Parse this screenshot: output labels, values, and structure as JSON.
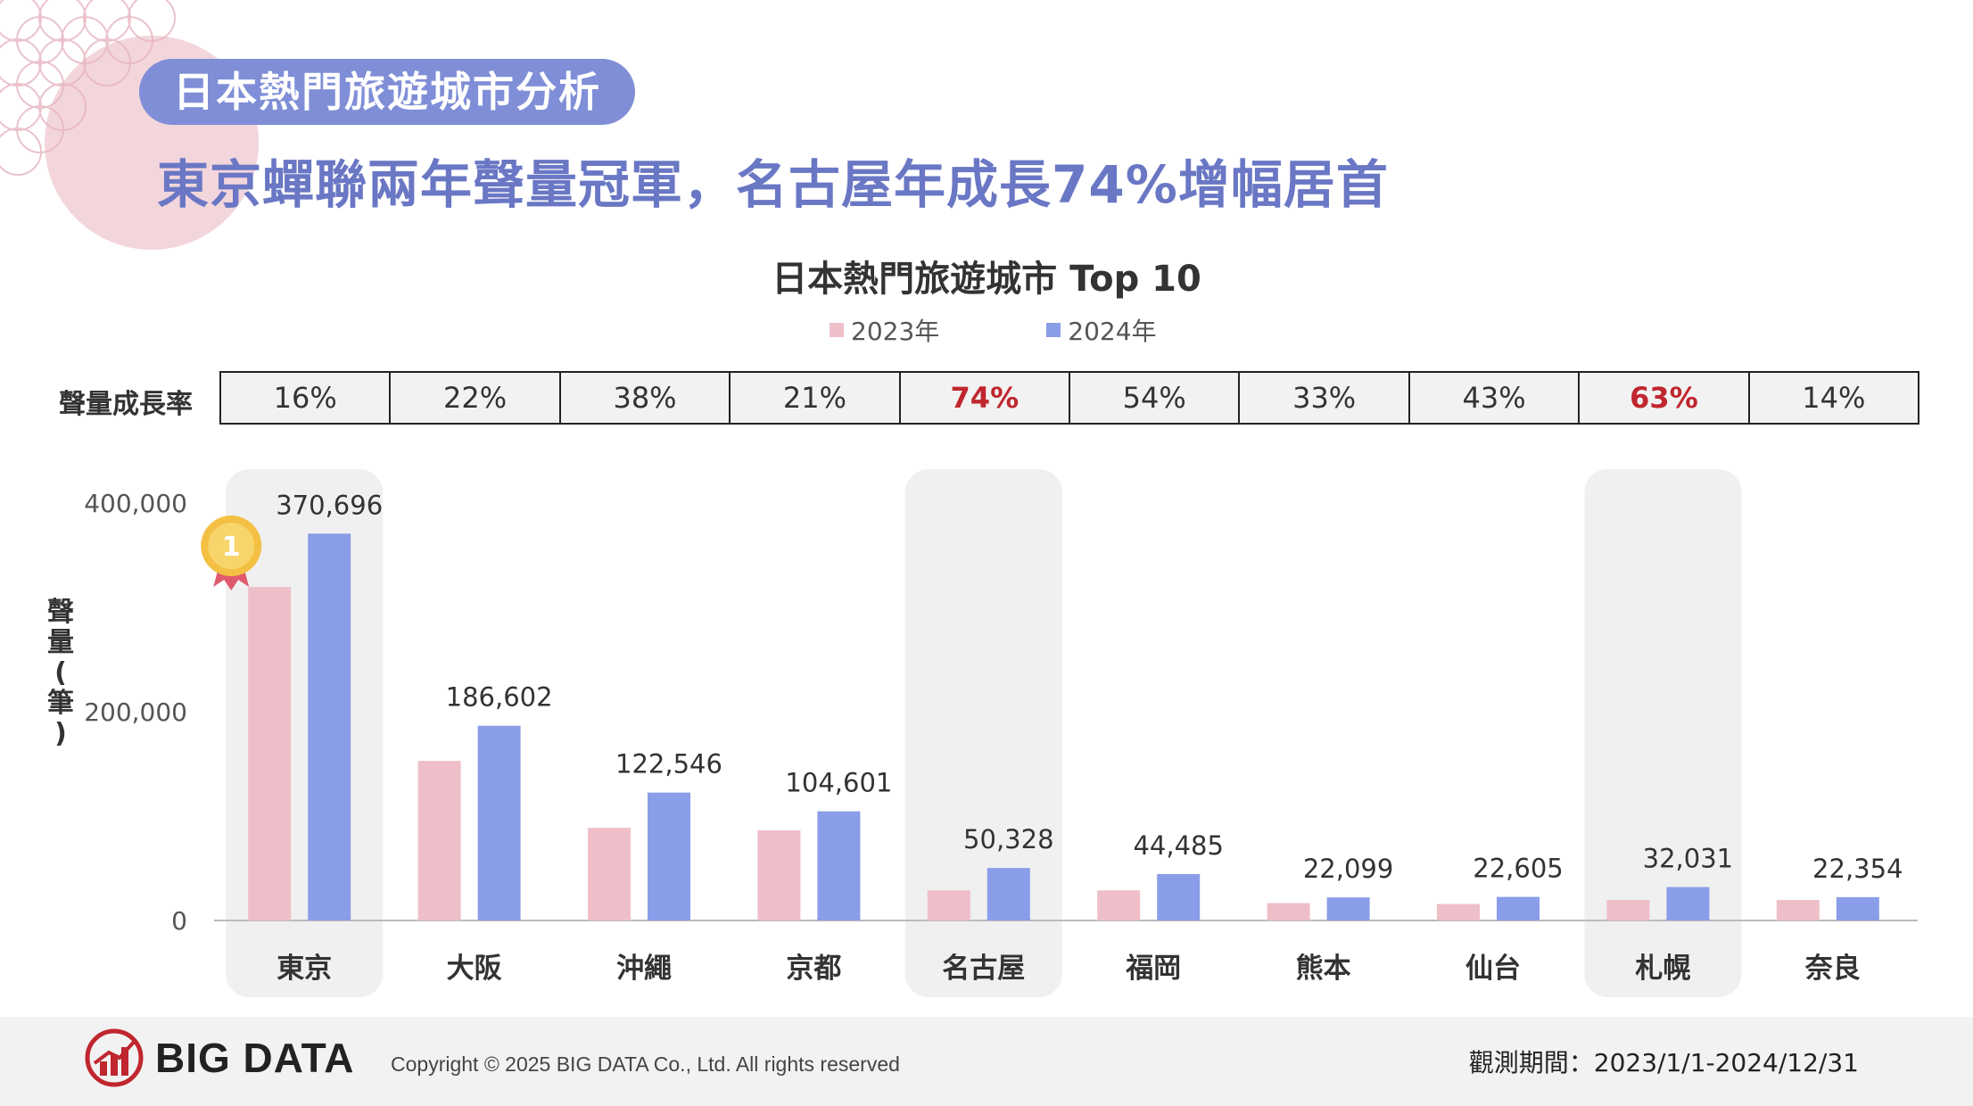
{
  "header": {
    "badge": "日本熱門旅遊城市分析",
    "headline": "東京蟬聯兩年聲量冠軍，名古屋年成長74%增幅居首"
  },
  "chart_data": {
    "type": "bar",
    "title": "日本熱門旅遊城市 Top 10",
    "ylabel": "聲量(筆)",
    "xlabel": "",
    "ylim": [
      0,
      400000
    ],
    "yticks": [
      "0",
      "200,000",
      "400,000"
    ],
    "yticks_values": [
      0,
      200000,
      400000
    ],
    "categories": [
      "東京",
      "大阪",
      "沖繩",
      "京都",
      "名古屋",
      "福岡",
      "熊本",
      "仙台",
      "札幌",
      "奈良"
    ],
    "series": [
      {
        "name": "2023年",
        "color": "#eebfc8",
        "values": [
          319567,
          152952,
          88802,
          86447,
          28924,
          28886,
          16616,
          15808,
          19664,
          19609
        ]
      },
      {
        "name": "2024年",
        "color": "#8a9de8",
        "values": [
          370696,
          186602,
          122546,
          104601,
          50328,
          44485,
          22099,
          22605,
          32031,
          22354
        ]
      }
    ],
    "data_labels": [
      "370,696",
      "186,602",
      "122,546",
      "104,601",
      "50,328",
      "44,485",
      "22,099",
      "22,605",
      "32,031",
      "22,354"
    ],
    "highlighted": [
      "東京",
      "名古屋",
      "札幌"
    ],
    "rank_badge": "1",
    "growth_label": "聲量成長率",
    "growth_rates": [
      "16%",
      "22%",
      "38%",
      "21%",
      "74%",
      "54%",
      "33%",
      "43%",
      "63%",
      "14%"
    ],
    "growth_highlight": [
      "74%",
      "63%"
    ]
  },
  "footer": {
    "logo": "BIG DATA",
    "copyright": "Copyright © 2025 BIG DATA Co., Ltd. All rights reserved",
    "period": "觀測期間：2023/1/1-2024/12/31"
  },
  "colors": {
    "accent": "#7f8ed6",
    "headline": "#6a77c4",
    "highlight_red": "#c0262e",
    "panel": "#f0f0f0"
  }
}
